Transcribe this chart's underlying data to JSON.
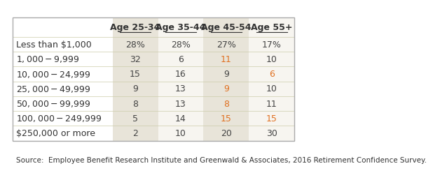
{
  "columns": [
    "Age 25-34",
    "Age 35-44",
    "Age 45-54",
    "Age 55+"
  ],
  "rows": [
    "Less than $1,000",
    "$1,000 - $9,999",
    "$10,000 - $24,999",
    "$25,000 - $49,999",
    "$50,000 - $99,999",
    "$100,000 - $249,999",
    "$250,000 or more"
  ],
  "values": [
    [
      "28%",
      "28%",
      "27%",
      "17%"
    ],
    [
      "32",
      "6",
      "11",
      "10"
    ],
    [
      "15",
      "16",
      "9",
      "6"
    ],
    [
      "9",
      "13",
      "9",
      "10"
    ],
    [
      "8",
      "13",
      "8",
      "11"
    ],
    [
      "5",
      "14",
      "15",
      "15"
    ],
    [
      "2",
      "10",
      "20",
      "30"
    ]
  ],
  "col_band_colors": [
    "#e8e4d9",
    "#f7f5f0",
    "#e8e4d9",
    "#f7f5f0"
  ],
  "bg_color": "#ffffff",
  "border_color": "#aaaaaa",
  "text_color": "#333333",
  "source_text": "Source:  Employee Benefit Research Institute and Greenwald & Associates, 2016 Retirement Confidence Survey.",
  "orange_cells": [
    [
      1,
      2
    ],
    [
      2,
      3
    ],
    [
      3,
      2
    ],
    [
      4,
      2
    ],
    [
      5,
      2
    ],
    [
      5,
      3
    ]
  ],
  "orange_color": "#e07020",
  "normal_color": "#444444",
  "header_font_size": 9,
  "cell_font_size": 9,
  "source_font_size": 7.5
}
